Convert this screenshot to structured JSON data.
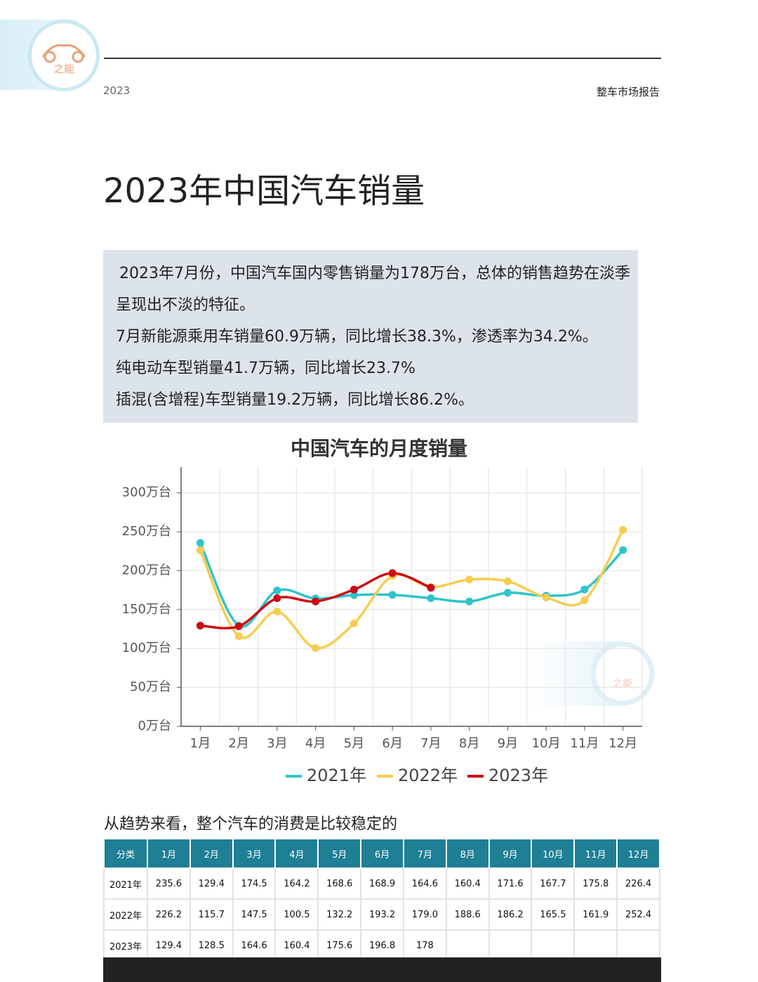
{
  "header": {
    "logo_text": "之能",
    "year": "2023",
    "report": "整车市场报告"
  },
  "title": "2023年中国汽车销量",
  "summary": [
    "2023年7月份，中国汽车国内零售销量为178万台，总体的销售趋势在淡季呈现出不淡的特征。",
    "7月新能源乘用车销量60.9万辆，同比增长38.3%，渗透率为34.2%。",
    "纯电动车型销量41.7万辆，同比增长23.7%",
    "插混(含增程)车型销量19.2万辆，同比增长86.2%。"
  ],
  "chart_data": {
    "type": "line",
    "title": "中国汽车的月度销量",
    "categories": [
      "1月",
      "2月",
      "3月",
      "4月",
      "5月",
      "6月",
      "7月",
      "8月",
      "9月",
      "10月",
      "11月",
      "12月"
    ],
    "series": [
      {
        "name": "2021年",
        "color": "#2ec4c9",
        "values": [
          235.6,
          129.4,
          174.5,
          164.2,
          168.6,
          168.9,
          164.6,
          160.4,
          171.6,
          167.7,
          175.8,
          226.4
        ]
      },
      {
        "name": "2022年",
        "color": "#f7cc50",
        "values": [
          226.2,
          115.7,
          147.5,
          100.5,
          132.2,
          193.2,
          179.0,
          188.6,
          186.2,
          165.5,
          161.9,
          252.4
        ]
      },
      {
        "name": "2023年",
        "color": "#cc0a14",
        "values": [
          129.4,
          128.5,
          164.6,
          160.4,
          175.6,
          196.8,
          178,
          null,
          null,
          null,
          null,
          null
        ]
      }
    ],
    "ylim": [
      0,
      333
    ],
    "yticks": [
      {
        "value": 0,
        "label": "0万台"
      },
      {
        "value": 50,
        "label": "50万台"
      },
      {
        "value": 100,
        "label": "100万台"
      },
      {
        "value": 150,
        "label": "150万台"
      },
      {
        "value": 200,
        "label": "200万台"
      },
      {
        "value": 250,
        "label": "250万台"
      },
      {
        "value": 300,
        "label": "300万台"
      }
    ],
    "grid": true,
    "legend": "bottom"
  },
  "subtitle": "从趋势来看，整个汽车的消费是比较稳定的",
  "table": {
    "header": [
      "分类",
      "1月",
      "2月",
      "3月",
      "4月",
      "5月",
      "6月",
      "7月",
      "8月",
      "9月",
      "10月",
      "11月",
      "12月"
    ],
    "rows": [
      [
        "2021年",
        "235.6",
        "129.4",
        "174.5",
        "164.2",
        "168.6",
        "168.9",
        "164.6",
        "160.4",
        "171.6",
        "167.7",
        "175.8",
        "226.4"
      ],
      [
        "2022年",
        "226.2",
        "115.7",
        "147.5",
        "100.5",
        "132.2",
        "193.2",
        "179.0",
        "188.6",
        "186.2",
        "165.5",
        "161.9",
        "252.4"
      ],
      [
        "2023年",
        "129.4",
        "128.5",
        "164.6",
        "160.4",
        "175.6",
        "196.8",
        "178"
      ]
    ]
  }
}
